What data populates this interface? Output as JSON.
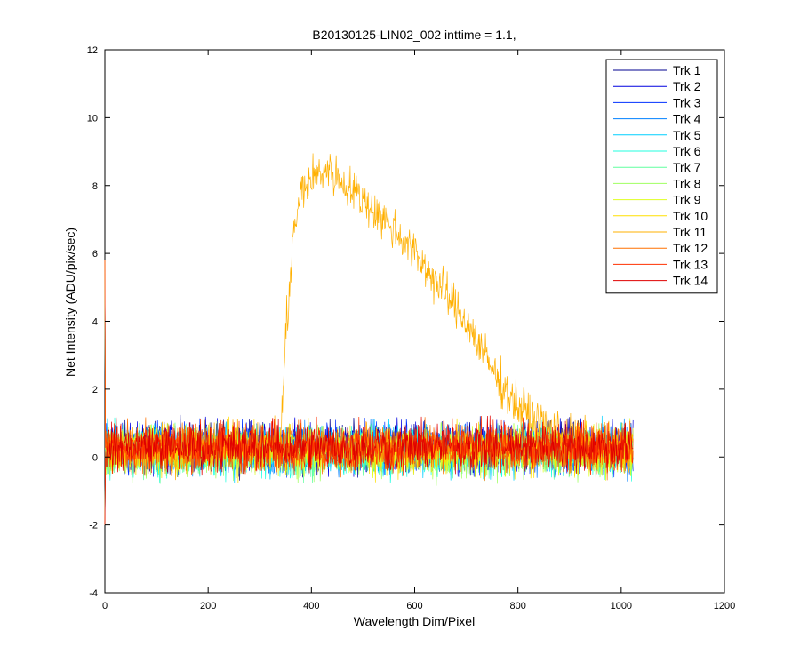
{
  "window": {
    "background": "#ffffff"
  },
  "chart_data": {
    "type": "line",
    "title": "B20130125-LIN02_002 inttime = 1.1,",
    "xlabel": "Wavelength Dim/Pixel",
    "ylabel": "Net Intensity (ADU/pix/sec)",
    "xlim": [
      0,
      1200
    ],
    "ylim": [
      -4,
      12
    ],
    "xticks": [
      0,
      200,
      400,
      600,
      800,
      1000,
      1200
    ],
    "yticks": [
      -4,
      -2,
      0,
      2,
      4,
      6,
      8,
      10,
      12
    ],
    "x_points": 1024,
    "legend_position": "top-right",
    "noise_amplitude": 0.35,
    "series": [
      {
        "name": "Trk 1",
        "color": "#00008f",
        "baseline": 0.3
      },
      {
        "name": "Trk 2",
        "color": "#0000df",
        "baseline": 0.3
      },
      {
        "name": "Trk 3",
        "color": "#0030ff",
        "baseline": 0.25
      },
      {
        "name": "Trk 4",
        "color": "#0080ff",
        "baseline": 0.2
      },
      {
        "name": "Trk 5",
        "color": "#00cfff",
        "baseline": 0.2
      },
      {
        "name": "Trk 6",
        "color": "#20ffdf",
        "baseline": 0.15
      },
      {
        "name": "Trk 7",
        "color": "#60ff9f",
        "baseline": 0.15
      },
      {
        "name": "Trk 8",
        "color": "#9fff60",
        "baseline": 0.15
      },
      {
        "name": "Trk 9",
        "color": "#dfff20",
        "baseline": 0.2
      },
      {
        "name": "Trk 10",
        "color": "#ffdf00",
        "baseline": 0.2
      },
      {
        "name": "Trk 11",
        "color": "#ffb000",
        "baseline": 0.3,
        "signal_profile": [
          [
            0,
            0.3
          ],
          [
            340,
            0.3
          ],
          [
            350,
            3.5
          ],
          [
            365,
            6.5
          ],
          [
            380,
            7.8
          ],
          [
            400,
            8.2
          ],
          [
            430,
            8.5
          ],
          [
            470,
            8.0
          ],
          [
            520,
            7.3
          ],
          [
            580,
            6.4
          ],
          [
            640,
            5.2
          ],
          [
            700,
            4.0
          ],
          [
            760,
            2.3
          ],
          [
            800,
            1.5
          ],
          [
            850,
            0.9
          ],
          [
            900,
            0.5
          ],
          [
            1023,
            0.3
          ]
        ]
      },
      {
        "name": "Trk 12",
        "color": "#ff7000",
        "baseline": 0.25
      },
      {
        "name": "Trk 13",
        "color": "#ff3000",
        "baseline": 0.3
      },
      {
        "name": "Trk 14",
        "color": "#df0000",
        "baseline": 0.3
      }
    ]
  }
}
